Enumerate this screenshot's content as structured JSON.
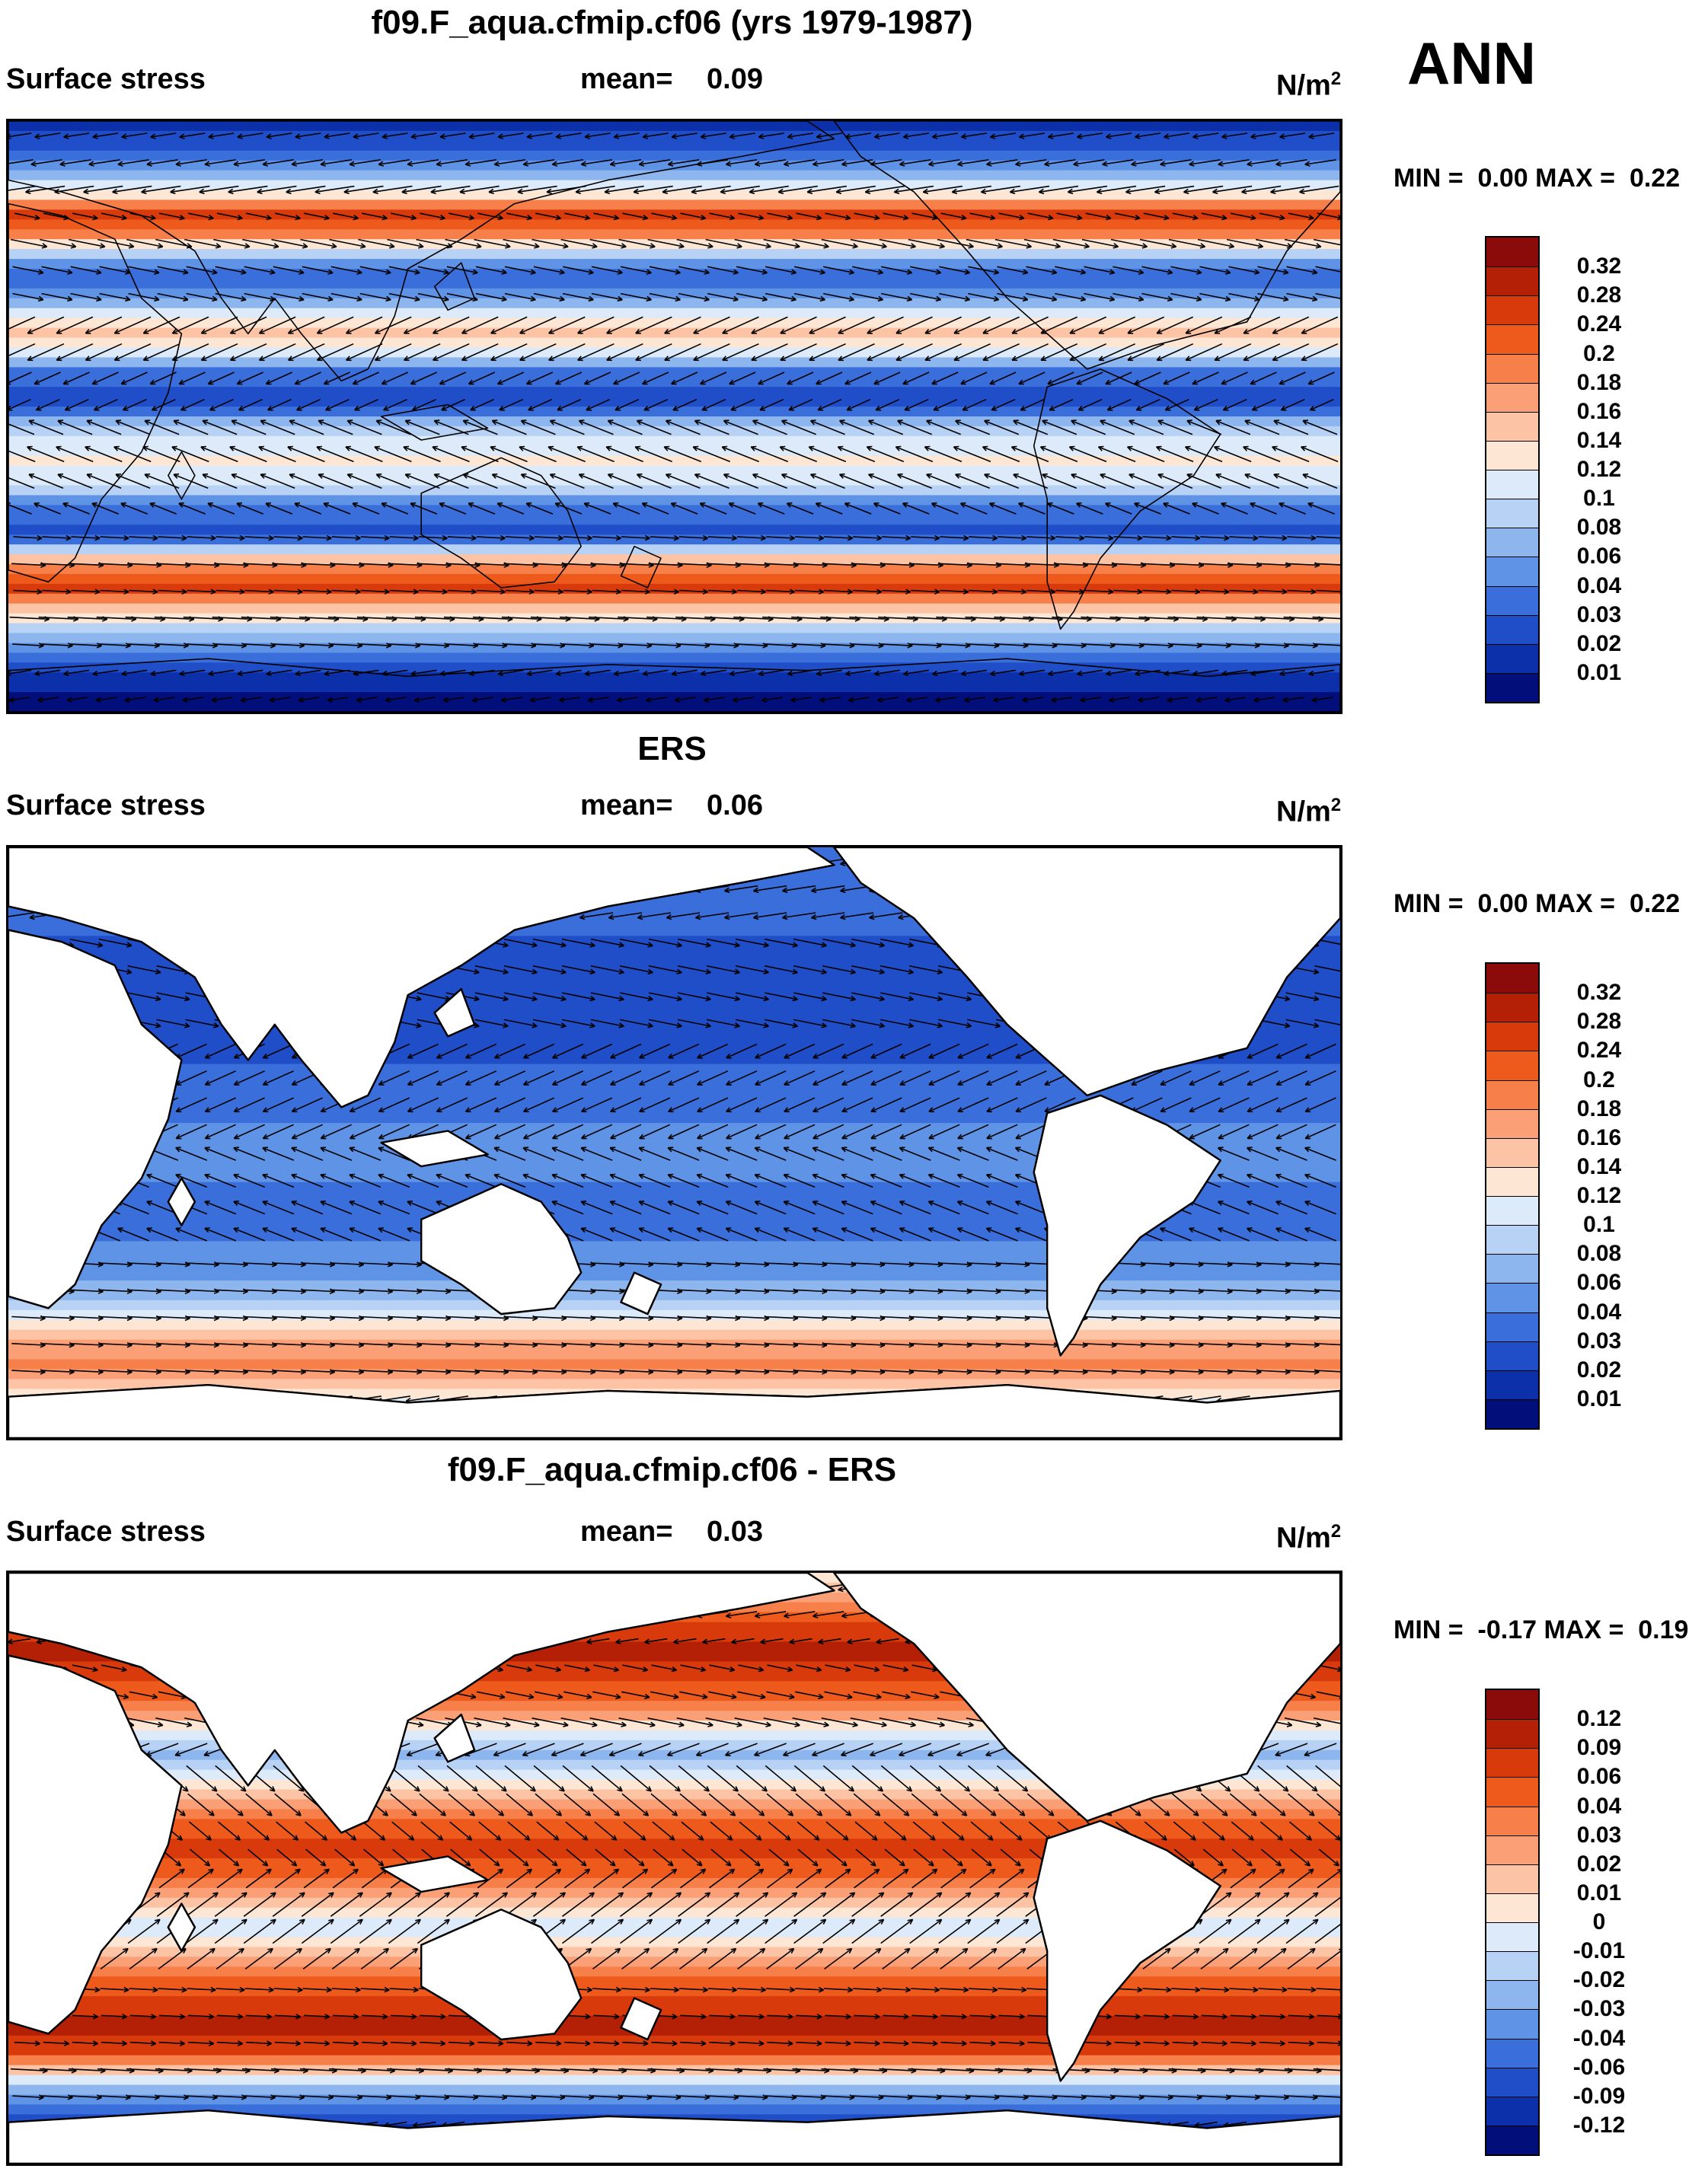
{
  "season": "ANN",
  "panels": [
    {
      "title": "f09.F_aqua.cfmip.cf06 (yrs 1979-1987)",
      "variable": "Surface stress",
      "mean_label": "mean=",
      "mean_value": "0.09",
      "units": "N/m",
      "units_exp": "2",
      "min_label": "MIN =",
      "min_value": "0.00",
      "max_label": "MAX =",
      "max_value": "0.22",
      "colorbar_labels": [
        "0.32",
        "0.28",
        "0.24",
        "0.2",
        "0.18",
        "0.16",
        "0.14",
        "0.12",
        "0.1",
        "0.08",
        "0.06",
        "0.04",
        "0.03",
        "0.02",
        "0.01"
      ]
    },
    {
      "title": "ERS",
      "variable": "Surface stress",
      "mean_label": "mean=",
      "mean_value": "0.06",
      "units": "N/m",
      "units_exp": "2",
      "min_label": "MIN =",
      "min_value": "0.00",
      "max_label": "MAX =",
      "max_value": "0.22",
      "colorbar_labels": [
        "0.32",
        "0.28",
        "0.24",
        "0.2",
        "0.18",
        "0.16",
        "0.14",
        "0.12",
        "0.1",
        "0.08",
        "0.06",
        "0.04",
        "0.03",
        "0.02",
        "0.01"
      ]
    },
    {
      "title": "f09.F_aqua.cfmip.cf06 - ERS",
      "variable": "Surface stress",
      "mean_label": "mean=",
      "mean_value": "0.03",
      "units": "N/m",
      "units_exp": "2",
      "min_label": "MIN =",
      "min_value": "-0.17",
      "max_label": "MAX =",
      "max_value": "0.19",
      "colorbar_labels": [
        "0.12",
        "0.09",
        "0.06",
        "0.04",
        "0.03",
        "0.02",
        "0.01",
        "0",
        "-0.01",
        "-0.02",
        "-0.03",
        "-0.04",
        "-0.06",
        "-0.09",
        "-0.12"
      ]
    }
  ],
  "colors": {
    "palette": [
      "#8b0a0a",
      "#b32005",
      "#d83a0c",
      "#ee5a1c",
      "#f77f4a",
      "#fa9f76",
      "#fcc3a4",
      "#fde6d4",
      "#dceaf9",
      "#b7d2f5",
      "#8db6ee",
      "#5f93e6",
      "#3a6fdb",
      "#1f4ec8",
      "#0c30aa",
      "#020f7a"
    ]
  }
}
